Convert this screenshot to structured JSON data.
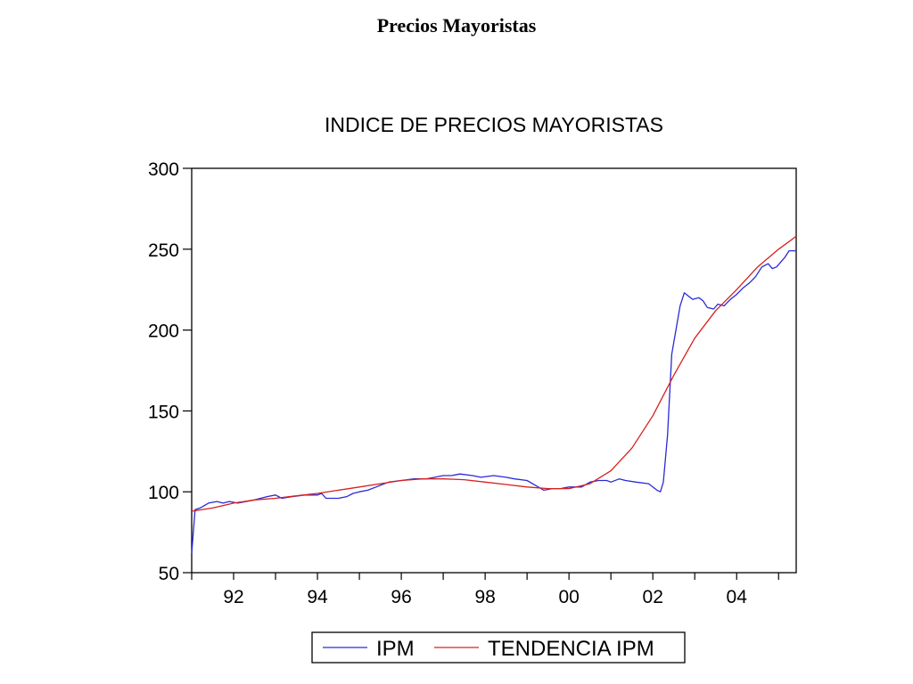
{
  "page": {
    "title": "Precios Mayoristas"
  },
  "chart_data": {
    "type": "line",
    "title": "INDICE DE PRECIOS MAYORISTAS",
    "xlabel": "",
    "ylabel": "",
    "ylim": [
      50,
      300
    ],
    "xlim": [
      1991.0,
      2005.42
    ],
    "yticks": [
      50,
      100,
      150,
      200,
      250,
      300
    ],
    "xticks": [
      {
        "value": 1992,
        "label": "92"
      },
      {
        "value": 1994,
        "label": "94"
      },
      {
        "value": 1996,
        "label": "96"
      },
      {
        "value": 1998,
        "label": "98"
      },
      {
        "value": 2000,
        "label": "00"
      },
      {
        "value": 2002,
        "label": "02"
      },
      {
        "value": 2004,
        "label": "04"
      }
    ],
    "grid": false,
    "legend": "bottom",
    "series": [
      {
        "name": "IPM",
        "color": "#2a2ad6",
        "points": [
          [
            1991.0,
            62
          ],
          [
            1991.08,
            89
          ],
          [
            1991.2,
            90
          ],
          [
            1991.4,
            93
          ],
          [
            1991.6,
            94
          ],
          [
            1991.75,
            93
          ],
          [
            1991.9,
            94
          ],
          [
            1992.1,
            93
          ],
          [
            1992.3,
            94
          ],
          [
            1992.5,
            95
          ],
          [
            1992.8,
            97
          ],
          [
            1993.0,
            98
          ],
          [
            1993.15,
            96
          ],
          [
            1993.4,
            97
          ],
          [
            1993.7,
            98
          ],
          [
            1994.0,
            98
          ],
          [
            1994.1,
            99
          ],
          [
            1994.2,
            96
          ],
          [
            1994.5,
            96
          ],
          [
            1994.7,
            97
          ],
          [
            1994.85,
            99
          ],
          [
            1995.0,
            100
          ],
          [
            1995.2,
            101
          ],
          [
            1995.4,
            103
          ],
          [
            1995.5,
            104
          ],
          [
            1995.7,
            106
          ],
          [
            1996.0,
            107
          ],
          [
            1996.3,
            108
          ],
          [
            1996.6,
            108
          ],
          [
            1996.8,
            109
          ],
          [
            1997.0,
            110
          ],
          [
            1997.2,
            110
          ],
          [
            1997.4,
            111
          ],
          [
            1997.7,
            110
          ],
          [
            1997.9,
            109
          ],
          [
            1998.2,
            110
          ],
          [
            1998.5,
            109
          ],
          [
            1998.7,
            108
          ],
          [
            1999.0,
            107
          ],
          [
            1999.2,
            104
          ],
          [
            1999.4,
            101
          ],
          [
            1999.6,
            102
          ],
          [
            1999.8,
            102
          ],
          [
            2000.0,
            103
          ],
          [
            2000.3,
            103
          ],
          [
            2000.5,
            106
          ],
          [
            2000.7,
            107
          ],
          [
            2000.9,
            107
          ],
          [
            2001.0,
            106
          ],
          [
            2001.2,
            108
          ],
          [
            2001.35,
            107
          ],
          [
            2001.6,
            106
          ],
          [
            2001.9,
            105
          ],
          [
            2002.0,
            103
          ],
          [
            2002.1,
            101
          ],
          [
            2002.18,
            100
          ],
          [
            2002.25,
            106
          ],
          [
            2002.35,
            135
          ],
          [
            2002.45,
            185
          ],
          [
            2002.55,
            200
          ],
          [
            2002.65,
            215
          ],
          [
            2002.75,
            223
          ],
          [
            2002.85,
            221
          ],
          [
            2002.95,
            219
          ],
          [
            2003.1,
            220
          ],
          [
            2003.2,
            218
          ],
          [
            2003.3,
            214
          ],
          [
            2003.45,
            213
          ],
          [
            2003.55,
            216
          ],
          [
            2003.7,
            215
          ],
          [
            2003.85,
            219
          ],
          [
            2004.0,
            222
          ],
          [
            2004.15,
            226
          ],
          [
            2004.3,
            229
          ],
          [
            2004.45,
            233
          ],
          [
            2004.6,
            239
          ],
          [
            2004.75,
            241
          ],
          [
            2004.85,
            238
          ],
          [
            2004.95,
            239
          ],
          [
            2005.05,
            242
          ],
          [
            2005.15,
            245
          ],
          [
            2005.25,
            249
          ],
          [
            2005.42,
            249
          ]
        ]
      },
      {
        "name": "TENDENCIA IPM",
        "color": "#d62020",
        "points": [
          [
            1991.0,
            88
          ],
          [
            1991.5,
            90
          ],
          [
            1992.0,
            93
          ],
          [
            1992.5,
            95
          ],
          [
            1993.0,
            96
          ],
          [
            1993.5,
            97.5
          ],
          [
            1994.0,
            99
          ],
          [
            1994.5,
            101
          ],
          [
            1995.0,
            103
          ],
          [
            1995.5,
            105
          ],
          [
            1996.0,
            107
          ],
          [
            1996.5,
            108
          ],
          [
            1997.0,
            108
          ],
          [
            1997.5,
            107.5
          ],
          [
            1998.0,
            106
          ],
          [
            1998.5,
            104.5
          ],
          [
            1999.0,
            103
          ],
          [
            1999.5,
            102
          ],
          [
            2000.0,
            102
          ],
          [
            2000.5,
            105
          ],
          [
            2001.0,
            113
          ],
          [
            2001.5,
            127
          ],
          [
            2002.0,
            147
          ],
          [
            2002.5,
            172
          ],
          [
            2003.0,
            195
          ],
          [
            2003.5,
            212
          ],
          [
            2004.0,
            225
          ],
          [
            2004.5,
            239
          ],
          [
            2005.0,
            250
          ],
          [
            2005.42,
            258
          ]
        ]
      }
    ]
  }
}
